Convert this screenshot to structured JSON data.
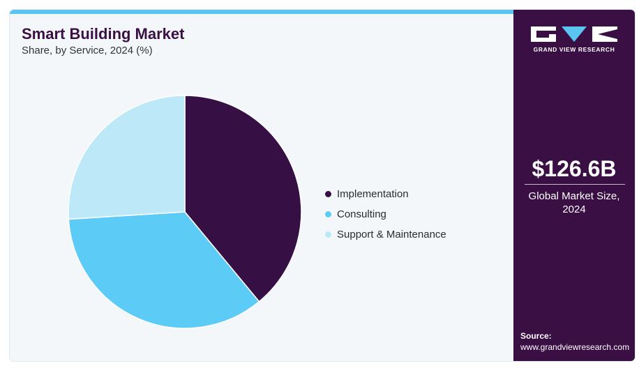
{
  "header": {
    "title": "Smart Building Market",
    "subtitle": "Share, by Service, 2024 (%)"
  },
  "colors": {
    "accent": "#5bc5f2",
    "brand": "#3a0f44",
    "background": "#f3f7fa"
  },
  "chart_data": {
    "type": "pie",
    "title": "Smart Building Market",
    "subtitle": "Share, by Service, 2024 (%)",
    "legend_position": "right",
    "start_angle_deg": 0,
    "direction": "clockwise",
    "slices": [
      {
        "label": "Implementation",
        "value": 39.0,
        "color": "#360f45"
      },
      {
        "label": "Consulting",
        "value": 35.0,
        "color": "#5ccbf5"
      },
      {
        "label": "Support & Maintenance",
        "value": 26.0,
        "color": "#bde8f8"
      }
    ]
  },
  "sidebar": {
    "logo_text": "GRAND VIEW RESEARCH",
    "logo_icon": "gvr-logo",
    "market_size": "$126.6B",
    "market_size_label": "Global Market Size, 2024",
    "source_label": "Source:",
    "source_url": "www.grandviewresearch.com"
  }
}
